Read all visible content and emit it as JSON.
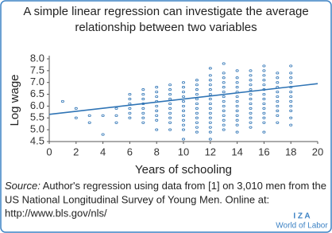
{
  "chart_data": {
    "type": "scatter",
    "title": [
      "A simple linear regression can investigate the average",
      "relationship between two variables"
    ],
    "x_label": "Years of schooling",
    "y_label": "Log wage",
    "xlim": [
      0,
      20
    ],
    "xticks": [
      0,
      2,
      4,
      6,
      8,
      10,
      12,
      14,
      16,
      18,
      20
    ],
    "ylim": [
      4.5,
      8.0
    ],
    "yticks": [
      {
        "value": 4.5,
        "label": "4.5"
      },
      {
        "value": 5.0,
        "label": "5.0"
      },
      {
        "value": 5.5,
        "label": "5.5"
      },
      {
        "value": 6.0,
        "label": "6.0"
      },
      {
        "value": 6.5,
        "label": "6.5"
      },
      {
        "value": 7.0,
        "label": "7.0"
      },
      {
        "value": 7.5,
        "label": "7.5"
      },
      {
        "value": 8.0,
        "label": "8.0"
      }
    ],
    "color": "#2f74b5",
    "points": {
      "x": [
        1,
        2,
        2,
        3,
        3,
        4,
        4,
        5,
        5,
        5,
        6,
        6,
        6,
        6,
        6,
        6,
        7,
        7,
        7,
        7,
        7,
        7,
        7,
        7,
        8,
        8,
        8,
        8,
        8,
        8,
        8,
        8,
        8,
        9,
        9,
        9,
        9,
        9,
        9,
        9,
        9,
        9,
        9,
        10,
        10,
        10,
        10,
        10,
        10,
        10,
        10,
        10,
        10,
        10,
        10,
        11,
        11,
        11,
        11,
        11,
        11,
        11,
        11,
        11,
        11,
        11,
        11,
        12,
        12,
        12,
        12,
        12,
        12,
        12,
        12,
        12,
        12,
        12,
        12,
        12,
        12,
        12,
        13,
        13,
        13,
        13,
        13,
        13,
        13,
        13,
        13,
        13,
        13,
        13,
        13,
        13,
        14,
        14,
        14,
        14,
        14,
        14,
        14,
        14,
        14,
        14,
        14,
        14,
        14,
        15,
        15,
        15,
        15,
        15,
        15,
        15,
        15,
        15,
        15,
        15,
        15,
        15,
        16,
        16,
        16,
        16,
        16,
        16,
        16,
        16,
        16,
        16,
        16,
        16,
        16,
        16,
        17,
        17,
        17,
        17,
        17,
        17,
        17,
        17,
        17,
        17,
        17,
        18,
        18,
        18,
        18,
        18,
        18,
        18,
        18,
        18,
        18,
        18,
        18
      ],
      "y": [
        6.2,
        5.9,
        5.5,
        5.3,
        5.6,
        4.8,
        5.6,
        5.3,
        5.6,
        5.9,
        5.5,
        5.7,
        5.9,
        6.1,
        6.3,
        6.5,
        5.3,
        5.5,
        5.7,
        5.9,
        6.1,
        6.3,
        6.5,
        6.7,
        5.0,
        5.4,
        5.6,
        5.8,
        6.0,
        6.2,
        6.4,
        6.6,
        6.8,
        5.0,
        5.3,
        5.5,
        5.7,
        5.9,
        6.1,
        6.3,
        6.5,
        6.7,
        6.9,
        4.6,
        5.0,
        5.2,
        5.4,
        5.6,
        5.8,
        6.0,
        6.2,
        6.4,
        6.6,
        6.8,
        7.0,
        4.9,
        5.1,
        5.3,
        5.5,
        5.7,
        5.9,
        6.1,
        6.3,
        6.5,
        6.7,
        6.9,
        7.1,
        4.6,
        4.9,
        5.1,
        5.3,
        5.5,
        5.7,
        5.9,
        6.1,
        6.3,
        6.5,
        6.7,
        6.9,
        7.1,
        7.3,
        7.6,
        5.0,
        5.2,
        5.4,
        5.6,
        5.8,
        6.0,
        6.2,
        6.4,
        6.6,
        6.8,
        7.0,
        7.2,
        7.4,
        7.8,
        4.9,
        5.2,
        5.4,
        5.6,
        5.8,
        6.0,
        6.2,
        6.4,
        6.6,
        6.8,
        7.0,
        7.2,
        7.5,
        5.1,
        5.3,
        5.5,
        5.7,
        5.9,
        6.1,
        6.3,
        6.5,
        6.7,
        6.9,
        7.1,
        7.3,
        7.5,
        4.9,
        5.3,
        5.5,
        5.7,
        5.9,
        6.1,
        6.3,
        6.5,
        6.7,
        6.9,
        7.1,
        7.3,
        7.5,
        7.7,
        5.3,
        5.6,
        5.8,
        6.0,
        6.2,
        6.4,
        6.6,
        6.8,
        7.0,
        7.2,
        7.4,
        5.2,
        5.5,
        5.8,
        6.0,
        6.2,
        6.4,
        6.6,
        6.8,
        7.0,
        7.2,
        7.4,
        7.7
      ]
    },
    "regression": {
      "x": [
        0,
        20
      ],
      "y": [
        5.65,
        6.95
      ]
    },
    "source_label": "Source:",
    "source_lines": [
      " Author's regression using data from [1] on 3,010 men from the",
      "US National Longitudinal Survey of Young Men. Online at:",
      "http://www.bls.gov/nls/"
    ],
    "logo": [
      "I Z A",
      "World of Labor"
    ]
  }
}
